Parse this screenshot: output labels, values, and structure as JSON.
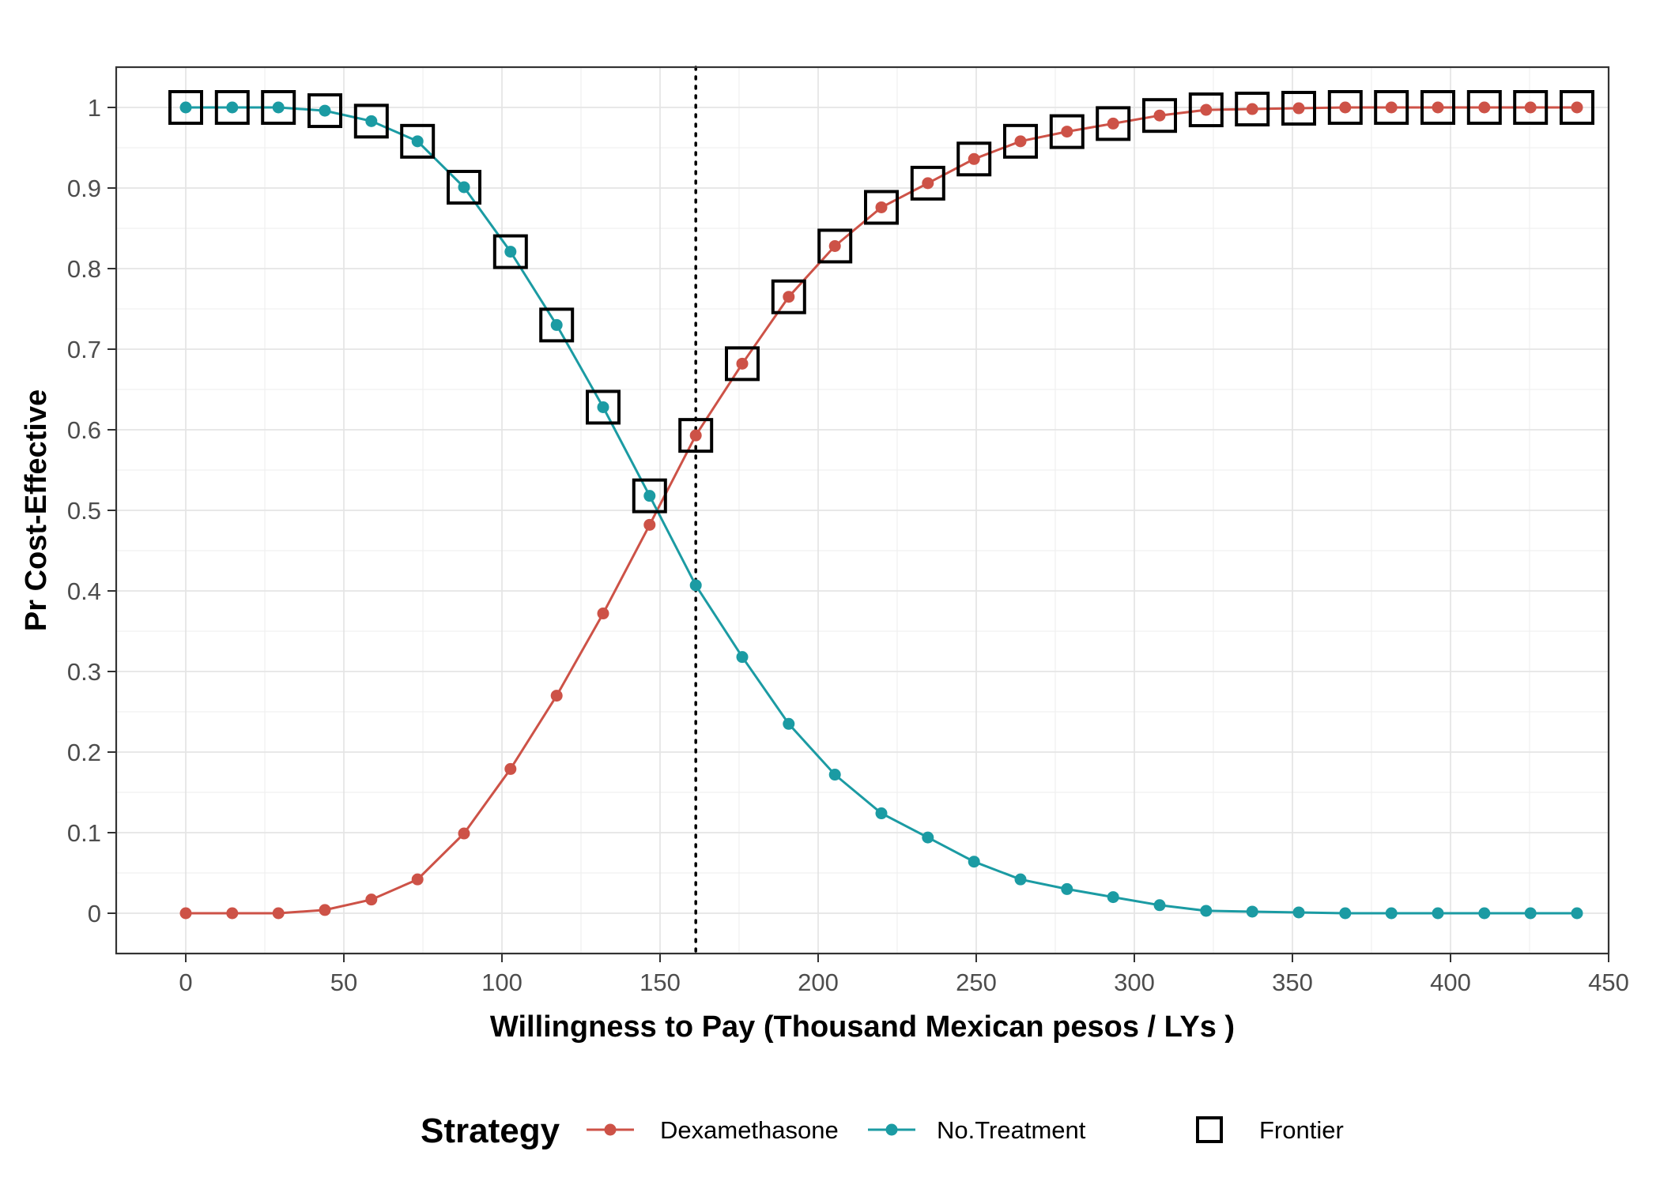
{
  "chart_data": {
    "type": "line",
    "xlabel": "Willingness to Pay (Thousand Mexican pesos / LYs )",
    "ylabel": "Pr Cost-Effective",
    "xlim": [
      -22,
      450
    ],
    "ylim": [
      -0.05,
      1.05
    ],
    "x_ticks": [
      0,
      50,
      100,
      150,
      200,
      250,
      300,
      350,
      400,
      450
    ],
    "y_ticks": [
      0,
      0.1,
      0.2,
      0.3,
      0.4,
      0.5,
      0.6,
      0.7,
      0.8,
      0.9,
      1
    ],
    "x_tick_labels": [
      "0",
      "50",
      "100",
      "150",
      "200",
      "250",
      "300",
      "350",
      "400",
      "450"
    ],
    "y_tick_labels": [
      "0",
      "0.1",
      "0.2",
      "0.3",
      "0.4",
      "0.5",
      "0.6",
      "0.7",
      "0.8",
      "0.9",
      "1"
    ],
    "grid": true,
    "x": [
      0,
      14.7,
      29.3,
      44,
      58.7,
      73.3,
      88,
      102.7,
      117.3,
      132,
      146.7,
      161.3,
      176,
      190.7,
      205.3,
      220,
      234.7,
      249.3,
      264,
      278.7,
      293.3,
      308,
      322.7,
      337.3,
      352,
      366.7,
      381.3,
      396,
      410.7,
      425.3,
      440
    ],
    "series": [
      {
        "name": "Dexamethasone",
        "color": "#cd5247",
        "values": [
          0,
          0,
          0,
          0.004,
          0.017,
          0.042,
          0.099,
          0.179,
          0.27,
          0.372,
          0.482,
          0.593,
          0.682,
          0.765,
          0.828,
          0.876,
          0.906,
          0.936,
          0.958,
          0.97,
          0.98,
          0.99,
          0.997,
          0.998,
          0.999,
          1,
          1,
          1,
          1,
          1,
          1
        ]
      },
      {
        "name": "No.Treatment",
        "color": "#1b9ba3",
        "values": [
          1,
          1,
          1,
          0.996,
          0.983,
          0.958,
          0.901,
          0.821,
          0.73,
          0.628,
          0.518,
          0.407,
          0.318,
          0.235,
          0.172,
          0.124,
          0.094,
          0.064,
          0.042,
          0.03,
          0.02,
          0.01,
          0.003,
          0.002,
          0.001,
          0,
          0,
          0,
          0,
          0,
          0
        ]
      }
    ],
    "frontier": {
      "name": "Frontier",
      "points": [
        [
          0,
          1
        ],
        [
          14.7,
          1
        ],
        [
          29.3,
          1
        ],
        [
          44,
          0.996
        ],
        [
          58.7,
          0.983
        ],
        [
          73.3,
          0.958
        ],
        [
          88,
          0.901
        ],
        [
          102.7,
          0.821
        ],
        [
          117.3,
          0.73
        ],
        [
          132,
          0.628
        ],
        [
          146.7,
          0.518
        ],
        [
          161.3,
          0.593
        ],
        [
          176,
          0.682
        ],
        [
          190.7,
          0.765
        ],
        [
          205.3,
          0.828
        ],
        [
          220,
          0.876
        ],
        [
          234.7,
          0.906
        ],
        [
          249.3,
          0.936
        ],
        [
          264,
          0.958
        ],
        [
          278.7,
          0.97
        ],
        [
          293.3,
          0.98
        ],
        [
          308,
          0.99
        ],
        [
          322.7,
          0.997
        ],
        [
          337.3,
          0.998
        ],
        [
          352,
          0.999
        ],
        [
          366.7,
          1
        ],
        [
          381.3,
          1
        ],
        [
          396,
          1
        ],
        [
          410.7,
          1
        ],
        [
          425.3,
          1
        ],
        [
          440,
          1
        ]
      ]
    },
    "reference_line_x": 161.3,
    "legend": {
      "position": "bottom",
      "title": "Strategy",
      "frontier_label": "Frontier"
    }
  }
}
